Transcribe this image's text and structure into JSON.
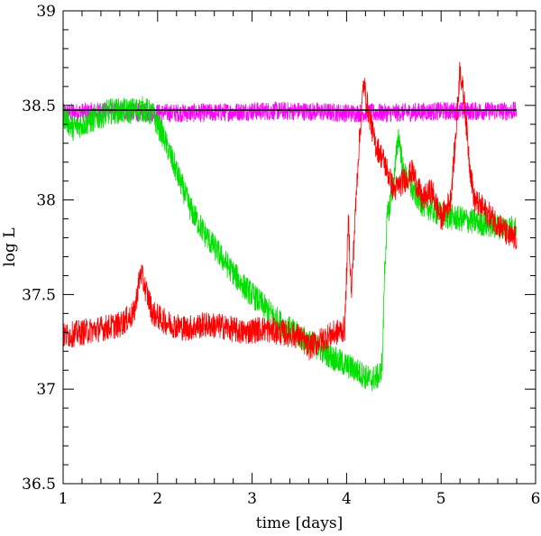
{
  "chart_data": {
    "type": "line",
    "xlabel": "time [days]",
    "ylabel": "log L",
    "xlim": [
      1,
      6
    ],
    "ylim": [
      36.5,
      39
    ],
    "x_ticks": [
      1,
      2,
      3,
      4,
      5,
      6
    ],
    "x_tick_labels": [
      "1",
      "2",
      "3",
      "4",
      "5",
      "6"
    ],
    "y_ticks": [
      36.5,
      37,
      37.5,
      38,
      38.5,
      39
    ],
    "y_tick_labels": [
      "36.5",
      "37",
      "37.5",
      "38",
      "38.5",
      "39"
    ],
    "grid": false,
    "series": [
      {
        "color": "#ff00ff",
        "x": [
          1.0,
          1.5,
          2.0,
          2.5,
          3.0,
          3.5,
          4.0,
          4.5,
          5.0,
          5.5,
          5.8
        ],
        "y": [
          38.46,
          38.47,
          38.46,
          38.46,
          38.47,
          38.47,
          38.46,
          38.46,
          38.47,
          38.47,
          38.47
        ]
      },
      {
        "color": "#00e000",
        "x": [
          1.0,
          1.1,
          1.3,
          1.5,
          1.7,
          1.85,
          1.95,
          2.05,
          2.2,
          2.35,
          2.5,
          2.7,
          2.9,
          3.1,
          3.3,
          3.5,
          3.7,
          3.9,
          4.1,
          4.25,
          4.35,
          4.38,
          4.4,
          4.43,
          4.5,
          4.55,
          4.6,
          4.7,
          4.8,
          4.9,
          5.0,
          5.2,
          5.4,
          5.6,
          5.8
        ],
        "y": [
          38.45,
          38.38,
          38.42,
          38.47,
          38.47,
          38.48,
          38.45,
          38.35,
          38.15,
          37.95,
          37.82,
          37.68,
          37.55,
          37.45,
          37.35,
          37.28,
          37.22,
          37.15,
          37.1,
          37.05,
          37.07,
          37.15,
          37.6,
          37.9,
          38.1,
          38.35,
          38.15,
          38.05,
          37.98,
          37.95,
          37.92,
          37.9,
          37.88,
          37.86,
          37.85
        ]
      },
      {
        "color": "#ff0000",
        "x": [
          1.0,
          1.2,
          1.4,
          1.6,
          1.75,
          1.82,
          1.86,
          1.95,
          2.1,
          2.3,
          2.5,
          2.7,
          2.9,
          3.1,
          3.3,
          3.5,
          3.6,
          3.7,
          3.8,
          3.9,
          3.98,
          4.02,
          4.05,
          4.08,
          4.12,
          4.18,
          4.22,
          4.3,
          4.4,
          4.5,
          4.6,
          4.7,
          4.8,
          4.9,
          5.0,
          5.1,
          5.15,
          5.2,
          5.25,
          5.3,
          5.35,
          5.45,
          5.55,
          5.65,
          5.72,
          5.8
        ],
        "y": [
          37.28,
          37.3,
          37.32,
          37.34,
          37.4,
          37.62,
          37.55,
          37.4,
          37.35,
          37.32,
          37.34,
          37.33,
          37.3,
          37.32,
          37.3,
          37.28,
          37.22,
          37.25,
          37.28,
          37.3,
          37.32,
          37.9,
          37.5,
          37.8,
          38.2,
          38.62,
          38.5,
          38.3,
          38.2,
          38.05,
          38.1,
          38.15,
          38.0,
          38.05,
          37.9,
          38.0,
          38.3,
          38.7,
          38.5,
          38.2,
          38.0,
          37.95,
          37.9,
          37.85,
          37.8,
          37.8
        ]
      },
      {
        "color": "#000000",
        "x": [
          1.0,
          5.8
        ],
        "y": [
          38.475,
          38.475
        ]
      }
    ]
  }
}
